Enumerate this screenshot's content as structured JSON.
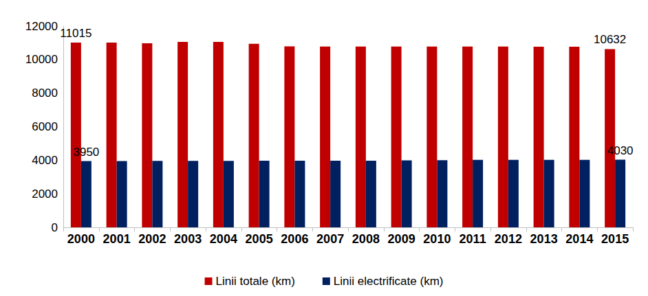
{
  "chart_data": {
    "type": "bar",
    "categories": [
      "2000",
      "2001",
      "2002",
      "2003",
      "2004",
      "2005",
      "2006",
      "2007",
      "2008",
      "2009",
      "2010",
      "2011",
      "2012",
      "2013",
      "2014",
      "2015"
    ],
    "series": [
      {
        "name": "Linii totale (km)",
        "color": "#C00000",
        "values": [
          11015,
          11015,
          10981,
          11053,
          11053,
          10948,
          10789,
          10777,
          10785,
          10784,
          10785,
          10777,
          10777,
          10768,
          10770,
          10632
        ],
        "value_labels": [
          "11015",
          null,
          null,
          null,
          null,
          null,
          null,
          null,
          null,
          null,
          null,
          null,
          null,
          null,
          null,
          "10632"
        ]
      },
      {
        "name": "Linii electrificate (km)",
        "color": "#002060",
        "values": [
          3950,
          3950,
          3965,
          3965,
          3965,
          3974,
          3974,
          3974,
          3974,
          3998,
          4002,
          4020,
          4020,
          4029,
          4029,
          4030
        ],
        "value_labels": [
          "3950",
          null,
          null,
          null,
          null,
          null,
          null,
          null,
          null,
          null,
          null,
          null,
          null,
          null,
          null,
          "4030"
        ]
      }
    ],
    "ylim": [
      0,
      12000
    ],
    "yticks": [
      0,
      2000,
      4000,
      6000,
      8000,
      10000,
      12000
    ],
    "grid": false,
    "legend": "bottom"
  }
}
